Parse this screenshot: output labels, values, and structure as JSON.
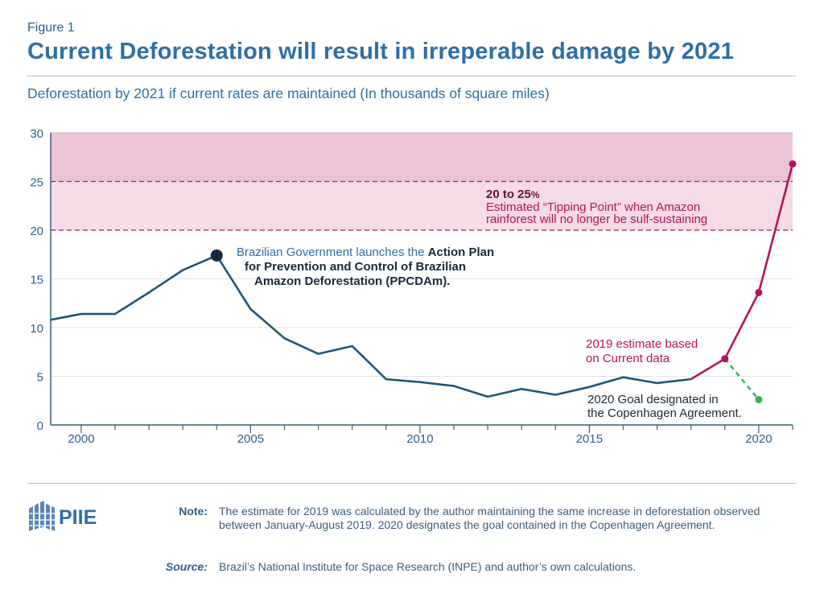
{
  "figure_label": "Figure 1",
  "title": "Current Deforestation will result in irreperable damage by 2021",
  "subtitle": "Deforestation by 2021 if current rates are maintained (In thousands of square miles)",
  "colors": {
    "historical": "#1f5678",
    "estimate": "#b5135c",
    "goal": "#35b450",
    "tipping_zone": "#f4dbe6",
    "tipping_zone_top": "#edc5d8",
    "accent_blue": "#2e6ea6",
    "dark_text": "#1a2a3a"
  },
  "chart_data": {
    "type": "line",
    "title": "Current Deforestation will result in irreperable damage by 2021",
    "subtitle": "Deforestation by 2021 if current rates are maintained (In thousands of square miles)",
    "xlabel": "",
    "ylabel": "",
    "xlim": [
      1999.1,
      2021
    ],
    "ylim": [
      0,
      30
    ],
    "x_ticks": [
      2000,
      2005,
      2010,
      2015,
      2020
    ],
    "y_ticks": [
      0,
      5,
      10,
      15,
      20,
      25,
      30
    ],
    "grid": "horizontal",
    "series": [
      {
        "role": "historical",
        "x": [
          1999.1,
          2000,
          2001,
          2002,
          2003,
          2004,
          2005,
          2006,
          2007,
          2008,
          2009,
          2010,
          2011,
          2012,
          2013,
          2014,
          2015,
          2016,
          2017,
          2018
        ],
        "y": [
          10.8,
          11.4,
          11.4,
          13.6,
          15.9,
          17.4,
          11.9,
          8.9,
          7.3,
          8.1,
          4.7,
          4.4,
          4.0,
          2.9,
          3.7,
          3.1,
          3.9,
          4.9,
          4.3,
          4.7
        ]
      },
      {
        "role": "estimate",
        "x": [
          2018,
          2019,
          2020,
          2021
        ],
        "y": [
          4.7,
          6.8,
          13.6,
          26.8
        ]
      },
      {
        "role": "goal",
        "x": [
          2019,
          2020
        ],
        "y": [
          6.8,
          2.6
        ]
      }
    ],
    "reference_band": {
      "from": 20,
      "to": 25
    },
    "annotations": {
      "action_plan_prefix": "Brazilian Government launches the ",
      "action_plan_bold1": "Action Plan",
      "action_plan_bold2": "for Prevention and Control of Brazilian",
      "action_plan_bold3": "Amazon Deforestation (PPCDAm).",
      "tipping_range": "20 to 25",
      "tipping_pct": "%",
      "tipping_line1": "Estimated “Tipping Point” when Amazon",
      "tipping_line2": "rainforest will no longer be sulf-sustaining",
      "estimate_line1": "2019 estimate based",
      "estimate_line2": "on Current data",
      "goal_line1": "2020 Goal designated in",
      "goal_line2": "the Copenhagen Agreement."
    }
  },
  "logo_text": "PIIE",
  "note": {
    "label": "Note:",
    "text": "The estimate for 2019 was calculated by the author maintaining the same increase in deforestation observed between January-August 2019. 2020 designates the goal contained in the Copenhagen Agreement."
  },
  "source": {
    "label": "Source:",
    "text": "Brazil’s National Institute for Space Research (INPE) and author’s own calculations."
  }
}
